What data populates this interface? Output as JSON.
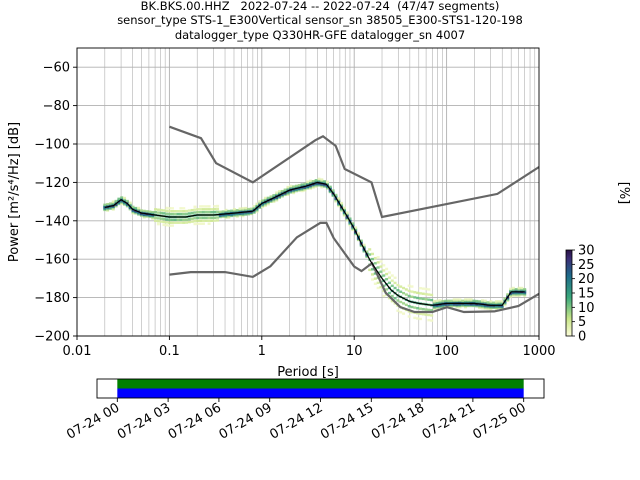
{
  "figure": {
    "title_lines": [
      "BK.BKS.00.HHZ   2022-07-24 -- 2022-07-24  (47/47 segments)",
      "sensor_type STS-1_E300Vertical sensor_sn 38505_E300-STS1-120-198",
      "datalogger_type Q330HR-GFE datalogger_sn 4007"
    ]
  },
  "chart_data": [
    {
      "type": "heatmap",
      "title": "BK.BKS.00.HHZ   2022-07-24 -- 2022-07-24  (47/47 segments)",
      "xlabel": "Period [s]",
      "ylabel": "Power [m²/s⁴/Hz] [dB]",
      "x_scale": "log",
      "xlim": [
        0.01,
        1000
      ],
      "ylim": [
        -200,
        -50
      ],
      "x_tick_labels": [
        "0.01",
        "0.1",
        "1",
        "10",
        "100",
        "1000"
      ],
      "x_ticks": [
        0.01,
        0.1,
        1,
        10,
        100,
        1000
      ],
      "y_ticks": [
        -200,
        -180,
        -160,
        -140,
        -120,
        -100,
        -80,
        -60
      ],
      "y_tick_labels": [
        "−200",
        "−180",
        "−160",
        "−140",
        "−120",
        "−100",
        "−80",
        "−60"
      ],
      "grid": true,
      "mean_curve": {
        "x": [
          0.02,
          0.025,
          0.03,
          0.035,
          0.04,
          0.05,
          0.07,
          0.1,
          0.15,
          0.2,
          0.3,
          0.5,
          0.8,
          1.0,
          1.5,
          2.0,
          3.0,
          4.0,
          5.0,
          6.0,
          8.0,
          10.0,
          12.0,
          15.0,
          20.0,
          25.0,
          30.0,
          40.0,
          50.0,
          70.0,
          100.0,
          150.0,
          200.0,
          300.0,
          400.0,
          500.0,
          600.0,
          700.0
        ],
        "y": [
          -133,
          -132,
          -129,
          -131,
          -134,
          -136,
          -137,
          -138,
          -138,
          -137,
          -137,
          -136,
          -135,
          -131,
          -127,
          -124,
          -122,
          -120,
          -121,
          -126,
          -136,
          -144,
          -152,
          -161,
          -170,
          -176,
          -179,
          -182,
          -183,
          -184,
          -183,
          -183,
          -183,
          -184,
          -184,
          -177,
          -177,
          -177
        ]
      },
      "noise_model_high": {
        "x": [
          0.1,
          0.22,
          0.32,
          0.8,
          3.8,
          4.6,
          6.3,
          7.9,
          15.4,
          20.0,
          354.8,
          1000
        ],
        "y": [
          -91,
          -97,
          -110,
          -120,
          -98,
          -96,
          -101,
          -113,
          -120,
          -138,
          -126,
          -112
        ]
      },
      "noise_model_low": {
        "x": [
          0.1,
          0.17,
          0.4,
          0.8,
          1.24,
          2.4,
          4.3,
          5.0,
          6.0,
          10.0,
          12.0,
          15.6,
          21.9,
          31.6,
          45.0,
          70.0,
          101.0,
          154.0,
          328.0,
          600.0,
          1000
        ],
        "y": [
          -168,
          -166.7,
          -166.7,
          -169.2,
          -163.7,
          -148.6,
          -141.1,
          -141.1,
          -149,
          -163.8,
          -166.2,
          -162.1,
          -177.5,
          -185,
          -187.5,
          -187.5,
          -185,
          -187.5,
          -187.2,
          -184.4,
          -178
        ]
      },
      "colorbar": {
        "label": "[%]",
        "ticks": [
          0,
          5,
          10,
          15,
          20,
          25,
          30
        ],
        "range": [
          0,
          30
        ]
      }
    },
    {
      "type": "bar",
      "x_tick_labels": [
        "07-24 00",
        "07-24 03",
        "07-24 06",
        "07-24 09",
        "07-24 12",
        "07-24 15",
        "07-24 18",
        "07-24 21",
        "07-25 00"
      ],
      "x_ticks_hours": [
        0,
        3,
        6,
        9,
        12,
        15,
        18,
        21,
        24
      ],
      "xlim_hours": [
        -1.2,
        25.2
      ],
      "coverage": [
        {
          "start_hour": 0,
          "end_hour": 24,
          "color": "#008000"
        },
        {
          "start_hour": 0,
          "end_hour": 24,
          "color": "#0000ff"
        }
      ]
    }
  ],
  "colors": {
    "mean": "#000000",
    "noise_models": "#666666",
    "grid": "#b0b0b0",
    "coverage_top": "#008000",
    "coverage_bottom": "#0000ff"
  }
}
